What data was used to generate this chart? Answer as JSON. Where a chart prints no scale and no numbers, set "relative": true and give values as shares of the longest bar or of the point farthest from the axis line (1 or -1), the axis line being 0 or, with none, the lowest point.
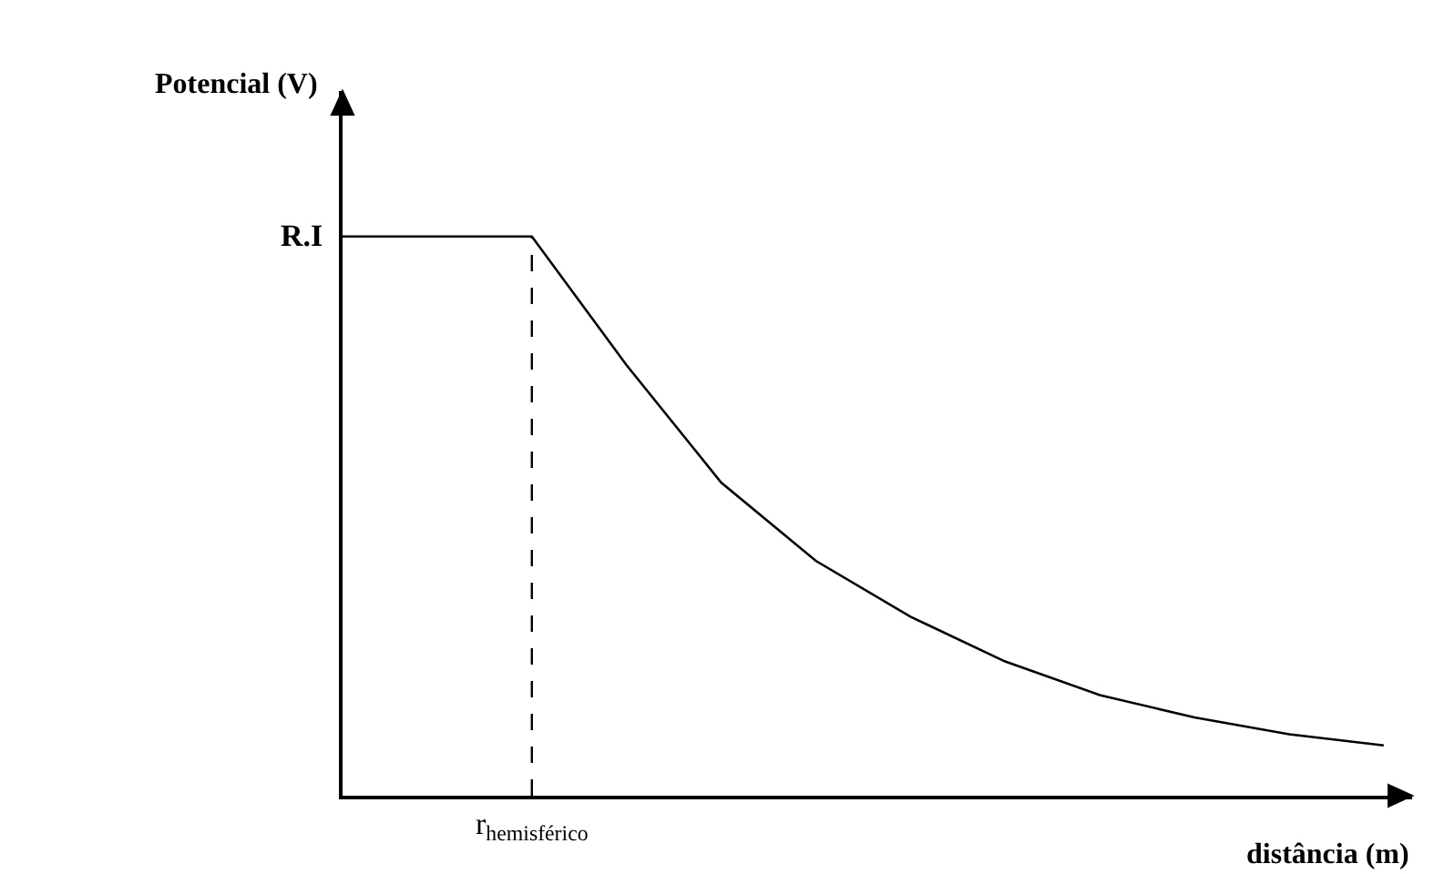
{
  "chart_data": {
    "type": "line",
    "relative": true,
    "xlabel": "distância (m)",
    "ylabel": "Potencial (V)",
    "categories": [
      null,
      null,
      null,
      null,
      null,
      null,
      null,
      null,
      null,
      null,
      null,
      null
    ],
    "series": [
      {
        "color": "#000000",
        "values": [
          1,
          1,
          1,
          0.77,
          0.56,
          0.42,
          0.32,
          0.24,
          0.18,
          0.14,
          0.11,
          0.09
        ]
      }
    ],
    "annotations": [
      "R.I",
      "r$_{hemisférico}$"
    ],
    "marker": "none",
    "line_style": "solid"
  }
}
